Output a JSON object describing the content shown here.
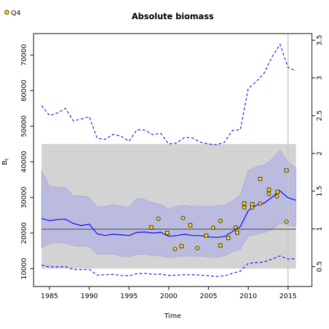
{
  "chart_data": {
    "type": "line",
    "title": "Absolute biomass",
    "xlabel": "Time",
    "ylabel": "B",
    "ylabel_sub": "t",
    "xlim": [
      1983,
      2018
    ],
    "ylim": [
      5000,
      76000
    ],
    "y2lim": [
      0.2366,
      3.588
    ],
    "x_ticks": [
      1985,
      1990,
      1995,
      2000,
      2005,
      2010,
      2015
    ],
    "y_ticks": [
      10000,
      20000,
      30000,
      40000,
      50000,
      60000,
      70000
    ],
    "y2_ticks": [
      0.5,
      1,
      1.5,
      2,
      2.5,
      3,
      3.5
    ],
    "y2_tick_labels": [
      "0.5",
      "1",
      "1.5",
      "2",
      "2.5",
      "3",
      "3.5"
    ],
    "legend": {
      "position": "top-left",
      "entries": [
        "Q4"
      ]
    },
    "colors": {
      "band_gray": "#d3d3d3",
      "ci_band": "#bbbbdf",
      "ci_band_edge": "#a7a7d9",
      "median": "#0000ff",
      "point_fill": "#ffd700",
      "reference_line": "#505050",
      "vertical_line": "#c8c8c8"
    },
    "gray_band": {
      "x": [
        1984,
        2016
      ],
      "y": [
        10000,
        45000
      ]
    },
    "reference_line": {
      "y": 21100
    },
    "vertical_line": {
      "x": 2015
    },
    "x": [
      1984,
      1985,
      1986,
      1987,
      1988,
      1989,
      1990,
      1991,
      1992,
      1993,
      1994,
      1995,
      1996,
      1997,
      1998,
      1999,
      2000,
      2001,
      2002,
      2003,
      2004,
      2005,
      2006,
      2007,
      2008,
      2009,
      2010,
      2011,
      2012,
      2013,
      2014,
      2015,
      2016
    ],
    "series": [
      {
        "role": "median",
        "values": [
          24100,
          23500,
          23800,
          23900,
          22700,
          22100,
          22500,
          19800,
          19300,
          19700,
          19500,
          19300,
          20200,
          20300,
          20000,
          20200,
          19100,
          19300,
          19700,
          19300,
          19300,
          18900,
          18800,
          19000,
          20400,
          21800,
          26300,
          27800,
          28400,
          30100,
          31800,
          29900,
          29200
        ]
      },
      {
        "role": "ci_upper",
        "values": [
          37500,
          33200,
          32900,
          32700,
          30500,
          30400,
          30100,
          27200,
          27500,
          28000,
          27600,
          27200,
          29700,
          29400,
          28500,
          28000,
          26700,
          27500,
          27800,
          27500,
          27600,
          27400,
          27700,
          27800,
          29000,
          30700,
          37400,
          38600,
          39000,
          40800,
          43300,
          39800,
          38400
        ]
      },
      {
        "role": "ci_lower",
        "values": [
          15900,
          17100,
          17400,
          17200,
          16500,
          16300,
          16300,
          14100,
          14100,
          14100,
          13500,
          13400,
          14000,
          14000,
          13700,
          13600,
          13100,
          13400,
          13600,
          13500,
          13500,
          13300,
          13200,
          13600,
          14800,
          15500,
          19200,
          19600,
          20100,
          21000,
          22800,
          22200,
          21900
        ]
      },
      {
        "role": "dashed_upper",
        "values": [
          55800,
          53000,
          53700,
          55000,
          51500,
          52000,
          52700,
          46600,
          46300,
          47700,
          47200,
          45800,
          49000,
          48900,
          47600,
          48000,
          45000,
          45300,
          46900,
          46700,
          45500,
          45000,
          44800,
          45500,
          48800,
          49000,
          60600,
          62500,
          64900,
          69500,
          73000,
          66500,
          65500
        ]
      },
      {
        "role": "dashed_lower",
        "values": [
          11000,
          10500,
          10500,
          10600,
          9800,
          9700,
          9800,
          8200,
          8300,
          8400,
          8100,
          8000,
          8600,
          8700,
          8400,
          8500,
          8100,
          8200,
          8300,
          8300,
          8200,
          8000,
          7800,
          8000,
          8700,
          9300,
          11500,
          11700,
          11900,
          12700,
          13600,
          12700,
          12800
        ]
      }
    ],
    "points": {
      "name": "Q4",
      "x": [
        1997.8,
        1998.7,
        1999.8,
        2000.8,
        2001.6,
        2001.8,
        2002.7,
        2003.6,
        2004.7,
        2005.6,
        2006.5,
        2006.5,
        2007.5,
        2008.4,
        2008.6,
        2009.5,
        2009.5,
        2010.5,
        2010.5,
        2011.5,
        2011.5,
        2012.6,
        2012.6,
        2013.6,
        2013.7,
        2014.8,
        2014.8
      ],
      "y": [
        21600,
        24000,
        20000,
        15500,
        16300,
        24200,
        22200,
        15800,
        19300,
        21500,
        16500,
        23400,
        18600,
        21600,
        20100,
        27200,
        28300,
        27200,
        28100,
        28300,
        35200,
        31000,
        32200,
        30300,
        31600,
        23200,
        37600
      ]
    }
  }
}
